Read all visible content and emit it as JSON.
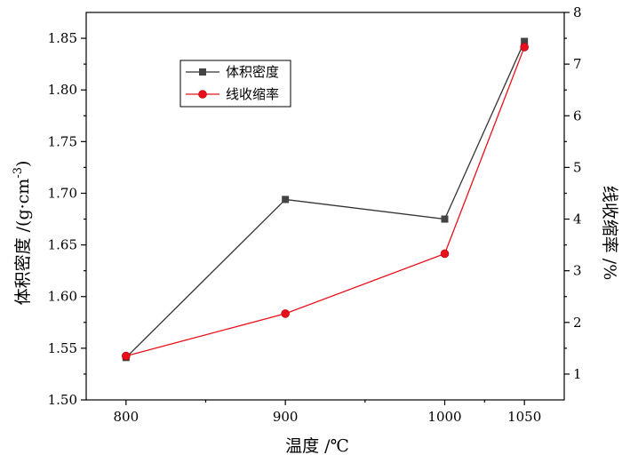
{
  "chart_data": {
    "type": "line",
    "title": "",
    "xlabel": "温度 /℃",
    "ylabel_left": "体积密度 /(g·cm",
    "ylabel_left_sup": "-3",
    "ylabel_left_end": ")",
    "ylabel_right": "线收缩率 /%",
    "x": [
      800,
      900,
      1000,
      1050
    ],
    "x_tick_labels": [
      "800",
      "900",
      "1000",
      "1050"
    ],
    "y_left_lim": [
      1.5,
      1.875
    ],
    "y_left_ticks": [
      "1.50",
      "1.55",
      "1.60",
      "1.65",
      "1.70",
      "1.75",
      "1.80",
      "1.85"
    ],
    "y_right_lim": [
      0.5,
      8
    ],
    "y_right_ticks": [
      "1",
      "2",
      "3",
      "4",
      "5",
      "6",
      "7",
      "8"
    ],
    "legend_position": "top-left",
    "grid": false,
    "series": [
      {
        "name": "体积密度",
        "axis": "left",
        "marker": "square",
        "color": "#333333",
        "marker_color": "#444444",
        "values": [
          1.541,
          1.694,
          1.675,
          1.847
        ]
      },
      {
        "name": "线收缩率",
        "axis": "right",
        "marker": "circle",
        "color": "#e8101a",
        "marker_color": "#e8101a",
        "values": [
          1.35,
          2.17,
          3.33,
          7.33
        ]
      }
    ]
  }
}
